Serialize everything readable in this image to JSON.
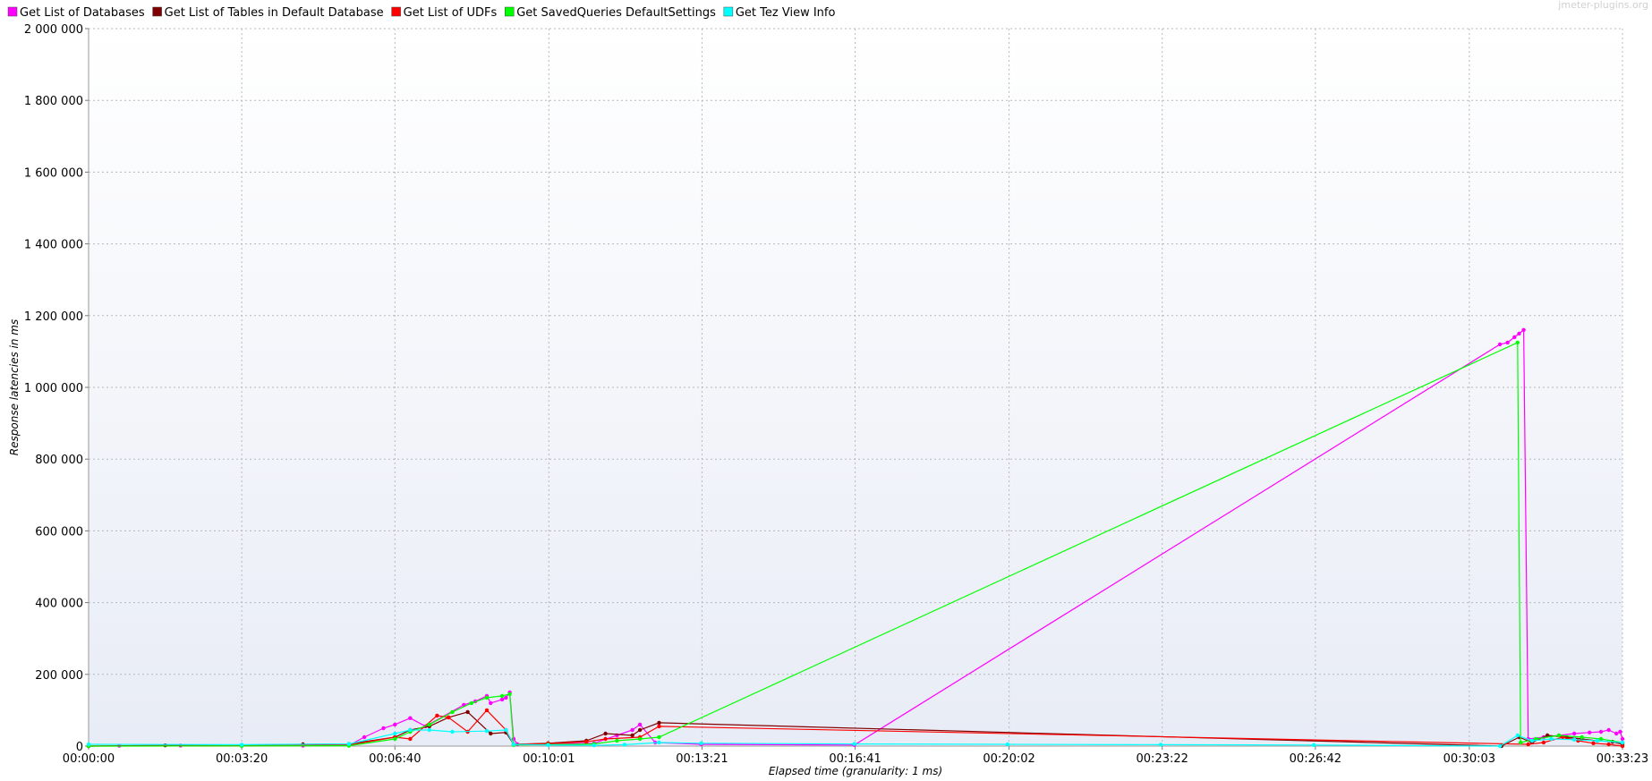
{
  "chart_data": {
    "type": "line",
    "watermark": "jmeter-plugins.org",
    "xlabel": "Elapsed time (granularity: 1 ms)",
    "ylabel": "Response latencies in ms",
    "xlim": [
      0,
      2003
    ],
    "ylim": [
      0,
      2000000
    ],
    "x_unit": "seconds elapsed",
    "x_ticks": [
      {
        "v": 0,
        "label": "00:00:00"
      },
      {
        "v": 200,
        "label": "00:03:20"
      },
      {
        "v": 400,
        "label": "00:06:40"
      },
      {
        "v": 601,
        "label": "00:10:01"
      },
      {
        "v": 801,
        "label": "00:13:21"
      },
      {
        "v": 1001,
        "label": "00:16:41"
      },
      {
        "v": 1202,
        "label": "00:20:02"
      },
      {
        "v": 1402,
        "label": "00:23:22"
      },
      {
        "v": 1602,
        "label": "00:26:42"
      },
      {
        "v": 1803,
        "label": "00:30:03"
      },
      {
        "v": 2003,
        "label": "00:33:23"
      }
    ],
    "y_ticks": [
      {
        "v": 0,
        "label": "0"
      },
      {
        "v": 200000,
        "label": "200 000"
      },
      {
        "v": 400000,
        "label": "400 000"
      },
      {
        "v": 600000,
        "label": "600 000"
      },
      {
        "v": 800000,
        "label": "800 000"
      },
      {
        "v": 1000000,
        "label": "1 000 000"
      },
      {
        "v": 1200000,
        "label": "1 200 000"
      },
      {
        "v": 1400000,
        "label": "1 400 000"
      },
      {
        "v": 1600000,
        "label": "1 600 000"
      },
      {
        "v": 1800000,
        "label": "1 800 000"
      },
      {
        "v": 2000000,
        "label": "2 000 000"
      }
    ],
    "grid": true,
    "legend_position": "top-left",
    "series": [
      {
        "name": "Get List of Databases",
        "color": "#ff00ff",
        "points": [
          [
            0,
            0
          ],
          [
            40,
            1000
          ],
          [
            120,
            1500
          ],
          [
            200,
            1500
          ],
          [
            280,
            1200
          ],
          [
            340,
            2000
          ],
          [
            360,
            25000
          ],
          [
            385,
            50000
          ],
          [
            400,
            60000
          ],
          [
            420,
            78000
          ],
          [
            440,
            55000
          ],
          [
            490,
            115000
          ],
          [
            505,
            125000
          ],
          [
            520,
            140000
          ],
          [
            525,
            120000
          ],
          [
            540,
            130000
          ],
          [
            545,
            135000
          ],
          [
            550,
            150000
          ],
          [
            555,
            20000
          ],
          [
            560,
            5000
          ],
          [
            600,
            6000
          ],
          [
            660,
            8000
          ],
          [
            690,
            30000
          ],
          [
            710,
            45000
          ],
          [
            720,
            60000
          ],
          [
            740,
            10000
          ],
          [
            800,
            5000
          ],
          [
            1000,
            3000
          ],
          [
            1843,
            1120000
          ],
          [
            1853,
            1125000
          ],
          [
            1862,
            1140000
          ],
          [
            1868,
            1150000
          ],
          [
            1874,
            1160000
          ],
          [
            1880,
            20000
          ],
          [
            1900,
            25000
          ],
          [
            1920,
            30000
          ],
          [
            1940,
            35000
          ],
          [
            1960,
            38000
          ],
          [
            1975,
            40000
          ],
          [
            1985,
            45000
          ],
          [
            1995,
            35000
          ],
          [
            2000,
            40000
          ],
          [
            2003,
            20000
          ]
        ]
      },
      {
        "name": "Get List of Tables in Default Database",
        "color": "#800000",
        "points": [
          [
            0,
            0
          ],
          [
            100,
            2000
          ],
          [
            200,
            3000
          ],
          [
            280,
            5000
          ],
          [
            340,
            6000
          ],
          [
            400,
            25000
          ],
          [
            420,
            45000
          ],
          [
            445,
            55000
          ],
          [
            470,
            80000
          ],
          [
            495,
            95000
          ],
          [
            525,
            35000
          ],
          [
            545,
            38000
          ],
          [
            555,
            5000
          ],
          [
            600,
            8000
          ],
          [
            650,
            15000
          ],
          [
            675,
            35000
          ],
          [
            710,
            30000
          ],
          [
            720,
            45000
          ],
          [
            745,
            65000
          ],
          [
            1845,
            0
          ],
          [
            1868,
            25000
          ],
          [
            1885,
            10000
          ],
          [
            1905,
            30000
          ],
          [
            1930,
            25000
          ],
          [
            1950,
            20000
          ],
          [
            1970,
            15000
          ],
          [
            1990,
            12000
          ],
          [
            2003,
            5000
          ]
        ]
      },
      {
        "name": "Get List of UDFs",
        "color": "#ff0000",
        "points": [
          [
            0,
            0
          ],
          [
            200,
            1000
          ],
          [
            340,
            3000
          ],
          [
            400,
            25000
          ],
          [
            420,
            20000
          ],
          [
            455,
            85000
          ],
          [
            470,
            80000
          ],
          [
            495,
            40000
          ],
          [
            520,
            100000
          ],
          [
            545,
            45000
          ],
          [
            555,
            5000
          ],
          [
            600,
            7000
          ],
          [
            650,
            12000
          ],
          [
            675,
            20000
          ],
          [
            720,
            25000
          ],
          [
            745,
            55000
          ],
          [
            1880,
            5000
          ],
          [
            1900,
            10000
          ],
          [
            1925,
            25000
          ],
          [
            1945,
            15000
          ],
          [
            1965,
            8000
          ],
          [
            1985,
            5000
          ],
          [
            2003,
            0
          ]
        ]
      },
      {
        "name": "Get SavedQueries DefaultSettings",
        "color": "#00ff00",
        "points": [
          [
            0,
            0
          ],
          [
            200,
            500
          ],
          [
            340,
            1000
          ],
          [
            400,
            20000
          ],
          [
            420,
            40000
          ],
          [
            445,
            60000
          ],
          [
            475,
            95000
          ],
          [
            500,
            120000
          ],
          [
            520,
            135000
          ],
          [
            540,
            140000
          ],
          [
            550,
            145000
          ],
          [
            555,
            3000
          ],
          [
            600,
            4000
          ],
          [
            660,
            6000
          ],
          [
            690,
            15000
          ],
          [
            720,
            20000
          ],
          [
            745,
            25000
          ],
          [
            1866,
            1125000
          ],
          [
            1870,
            10000
          ],
          [
            1890,
            20000
          ],
          [
            1920,
            30000
          ],
          [
            1950,
            25000
          ],
          [
            1975,
            20000
          ],
          [
            2003,
            10000
          ]
        ]
      },
      {
        "name": "Get Tez View Info",
        "color": "#00ffff",
        "points": [
          [
            0,
            5000
          ],
          [
            200,
            4000
          ],
          [
            340,
            6000
          ],
          [
            400,
            35000
          ],
          [
            420,
            45000
          ],
          [
            445,
            45000
          ],
          [
            475,
            40000
          ],
          [
            520,
            42000
          ],
          [
            545,
            45000
          ],
          [
            555,
            5000
          ],
          [
            600,
            3000
          ],
          [
            660,
            2000
          ],
          [
            700,
            4000
          ],
          [
            745,
            10000
          ],
          [
            800,
            8000
          ],
          [
            1000,
            6000
          ],
          [
            1200,
            5000
          ],
          [
            1400,
            4000
          ],
          [
            1600,
            3000
          ],
          [
            1843,
            0
          ],
          [
            1866,
            30000
          ],
          [
            1885,
            15000
          ],
          [
            1910,
            20000
          ],
          [
            1940,
            18000
          ],
          [
            1970,
            15000
          ],
          [
            2003,
            10000
          ]
        ]
      }
    ]
  }
}
